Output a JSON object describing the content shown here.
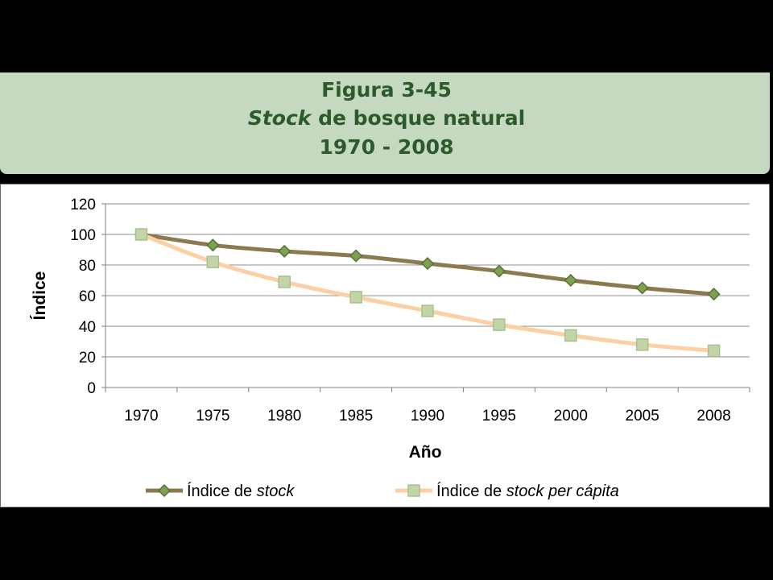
{
  "header": {
    "figure": "Figura 3-45",
    "title_em": "Stock",
    "title_rest": " de bosque natural",
    "period": "1970 - 2008"
  },
  "chart_data": {
    "type": "line",
    "categories": [
      "1970",
      "1975",
      "1980",
      "1985",
      "1990",
      "1995",
      "2000",
      "2005",
      "2008"
    ],
    "xlabel": "Año",
    "ylabel": "Índice",
    "ylim": [
      0,
      120
    ],
    "yticks": [
      0,
      20,
      40,
      60,
      80,
      100,
      120
    ],
    "grid": true,
    "legend_position": "bottom",
    "series": [
      {
        "name": "Índice de stock",
        "legend_parts": [
          {
            "text": "Índice de "
          },
          {
            "text": "stock",
            "italic": true
          }
        ],
        "values": [
          100,
          93,
          89,
          86,
          81,
          76,
          70,
          65,
          61
        ],
        "line_color": "#8b7a4e",
        "marker": "diamond",
        "marker_fill": "#7fa14f",
        "marker_stroke": "#55703a"
      },
      {
        "name": "Índice de stock per cápita",
        "legend_parts": [
          {
            "text": "Índice de "
          },
          {
            "text": "stock per cápita",
            "italic": true
          }
        ],
        "values": [
          100,
          82,
          69,
          59,
          50,
          41,
          34,
          28,
          24
        ],
        "line_color": "#fad0a4",
        "marker": "square",
        "marker_fill": "#c2d5a9",
        "marker_stroke": "#a9c08d"
      }
    ]
  }
}
